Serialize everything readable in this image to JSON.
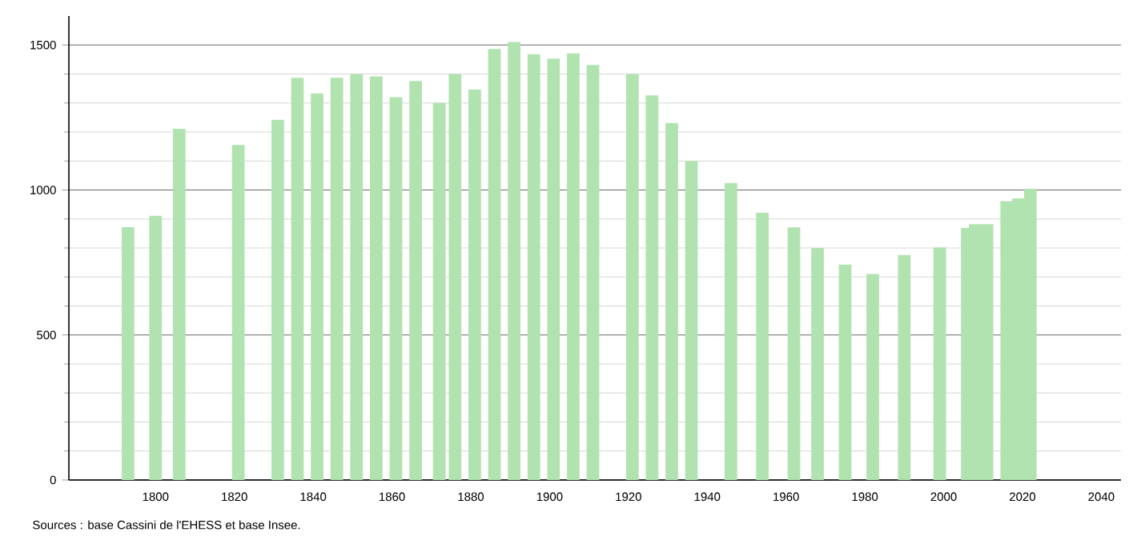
{
  "chart_data": {
    "type": "bar",
    "color": "#b0e3b0",
    "x": [
      1793,
      1800,
      1806,
      1821,
      1831,
      1836,
      1841,
      1846,
      1851,
      1856,
      1861,
      1866,
      1872,
      1876,
      1881,
      1886,
      1891,
      1896,
      1901,
      1906,
      1911,
      1921,
      1926,
      1931,
      1936,
      1946,
      1954,
      1962,
      1968,
      1975,
      1982,
      1990,
      1999,
      2006,
      2008,
      2011,
      2016,
      2019,
      2022
    ],
    "values": [
      872,
      911,
      1211,
      1155,
      1242,
      1387,
      1333,
      1387,
      1399,
      1392,
      1320,
      1376,
      1300,
      1399,
      1346,
      1486,
      1510,
      1468,
      1453,
      1471,
      1431,
      1399,
      1326,
      1231,
      1100,
      1024,
      921,
      871,
      800,
      743,
      710,
      776,
      802,
      869,
      882,
      882,
      961,
      971,
      1004
    ],
    "xlim": [
      1778,
      2045
    ],
    "ylim": [
      0,
      1600
    ],
    "xticks": [
      1800,
      1820,
      1840,
      1860,
      1880,
      1900,
      1920,
      1940,
      1960,
      1980,
      2000,
      2020,
      2040
    ],
    "yticks": [
      0,
      500,
      1000,
      1500
    ],
    "grid": "y",
    "annotations": [
      "Sources : base Cassini de l'EHESS et base Insee."
    ]
  }
}
